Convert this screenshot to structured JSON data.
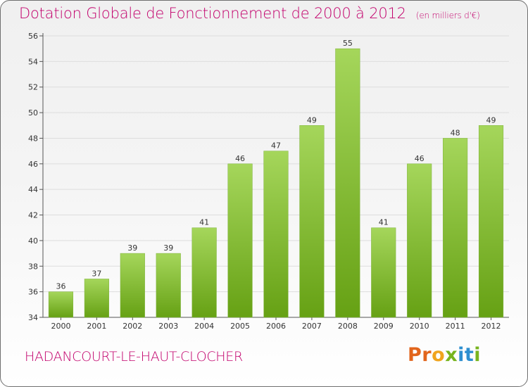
{
  "header": {
    "title": "Dotation Globale de Fonctionnement de 2000 à 2012",
    "unit": "(en milliers d'€)"
  },
  "footer": {
    "municipality": "HADANCOURT-LE-HAUT-CLOCHER",
    "logo_letters": [
      "P",
      "r",
      "o",
      "x",
      "i",
      "t",
      "i"
    ],
    "logo_colors": [
      "#e2651c",
      "#e2651c",
      "#f0a41e",
      "#78b41e",
      "#2e8fd0",
      "#2e8fd0",
      "#78b41e"
    ]
  },
  "colors": {
    "bar_top": "#a5d65b",
    "bar_bottom": "#66a114",
    "title": "#c2006c",
    "grid": "#dddddd"
  },
  "chart_data": {
    "type": "bar",
    "title": "Dotation Globale de Fonctionnement de 2000 à 2012",
    "subtitle": "(en milliers d'€)",
    "categories": [
      "2000",
      "2001",
      "2002",
      "2003",
      "2004",
      "2005",
      "2006",
      "2007",
      "2008",
      "2009",
      "2010",
      "2011",
      "2012"
    ],
    "values": [
      36,
      37,
      39,
      39,
      41,
      46,
      47,
      49,
      55,
      41,
      46,
      48,
      49
    ],
    "data_labels": [
      "36",
      "37",
      "39",
      "39",
      "41",
      "46",
      "47",
      "49",
      "55",
      "41",
      "46",
      "48",
      "49"
    ],
    "ylim": [
      34,
      56
    ],
    "yticks": [
      34,
      36,
      38,
      40,
      42,
      44,
      46,
      48,
      50,
      52,
      54,
      56
    ],
    "ytick_labels": [
      "34",
      "36",
      "38",
      "40",
      "42",
      "44",
      "46",
      "48",
      "50",
      "52",
      "54",
      "56"
    ],
    "grid": true,
    "legend": "none"
  }
}
